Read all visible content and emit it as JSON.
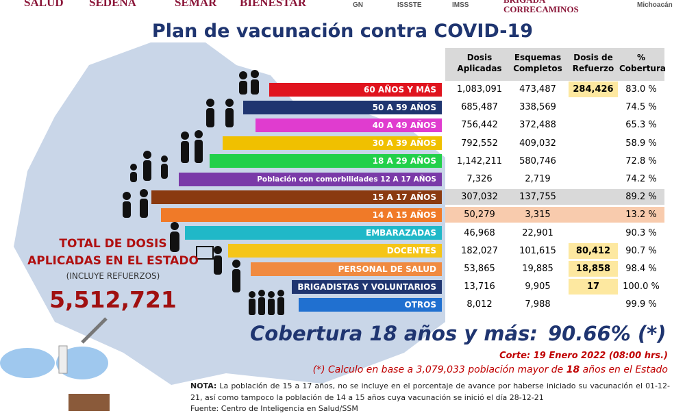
{
  "header": {
    "logos": [
      "SALUD",
      "SEDENA",
      "SEMAR",
      "BIENESTAR",
      "GN",
      "ISSSTE",
      "IMSS",
      "BRIGADA",
      "CORRECAMINOS",
      "Michoacán"
    ],
    "title": "Plan de vacunación contra COVID-19"
  },
  "table": {
    "columns": [
      "Dosis Aplicadas",
      "Esquemas Completos",
      "Dosis de Refuerzo",
      "% Cobertura"
    ],
    "rows": [
      {
        "label": "60 AÑOS Y MÁS",
        "dosis": "1,083,091",
        "esquemas": "473,487",
        "refuerzo": "284,426",
        "cobertura": "83.0 %"
      },
      {
        "label": "50 A 59 AÑOS",
        "dosis": "685,487",
        "esquemas": "338,569",
        "cobertura": "74.5 %"
      },
      {
        "label": "40 A 49 AÑOS",
        "dosis": "756,442",
        "esquemas": "372,488",
        "cobertura": "65.3 %"
      },
      {
        "label": "30 A 39 AÑOS",
        "dosis": "792,552",
        "esquemas": "409,032",
        "cobertura": "58.9 %"
      },
      {
        "label": "18 A 29 AÑOS",
        "dosis": "1,142,211",
        "esquemas": "580,746",
        "cobertura": "72.8 %"
      },
      {
        "label": "Población con comorbilidades 12 A 17 AÑOS",
        "dosis": "7,326",
        "esquemas": "2,719",
        "cobertura": "74.2 %"
      },
      {
        "label": "15 A 17 AÑOS",
        "dosis": "307,032",
        "esquemas": "137,755",
        "cobertura": "89.2 %"
      },
      {
        "label": "14 A 15 AÑOS",
        "dosis": "50,279",
        "esquemas": "3,315",
        "cobertura": "13.2 %"
      },
      {
        "label": "EMBARAZADAS",
        "dosis": "46,968",
        "esquemas": "22,901",
        "cobertura": "90.3 %"
      },
      {
        "label": "DOCENTES",
        "dosis": "182,027",
        "esquemas": "101,615",
        "refuerzo": "80,412",
        "cobertura": "90.7 %"
      },
      {
        "label": "PERSONAL DE SALUD",
        "dosis": "53,865",
        "esquemas": "19,885",
        "refuerzo": "18,858",
        "cobertura": "98.4 %"
      },
      {
        "label": "BRIGADISTAS Y VOLUNTARIOS",
        "dosis": "13,716",
        "esquemas": "9,905",
        "refuerzo": "17",
        "cobertura": "100.0 %"
      },
      {
        "label": "OTROS",
        "dosis": "8,012",
        "esquemas": "7,988",
        "cobertura": "99.9 %"
      }
    ]
  },
  "total": {
    "line1": "TOTAL DE DOSIS",
    "line2": "APLICADAS EN EL ESTADO",
    "note": "(INCLUYE REFUERZOS)",
    "value": "5,512,721"
  },
  "coverage": {
    "label": "Cobertura 18 años y más:",
    "value": "90.66% (*)"
  },
  "cutoff": "Corte: 19 Enero 2022 (08:00 hrs.)",
  "calculation": {
    "parts": [
      "(*) Calculo en base a 3,079,033 población mayor de ",
      "18",
      " años en el Estado"
    ]
  },
  "note": {
    "label": "NOTA:",
    "text": " La población de 15 a 17 años, no se incluye en el porcentaje de avance por haberse iniciado su vacunación el 01-12-21, así como tampoco la población de 14 a 15 años cuya vacunación se inició el día 28-12-21"
  },
  "source": "Fuente: Centro de Inteligencia en Salud/SSM"
}
